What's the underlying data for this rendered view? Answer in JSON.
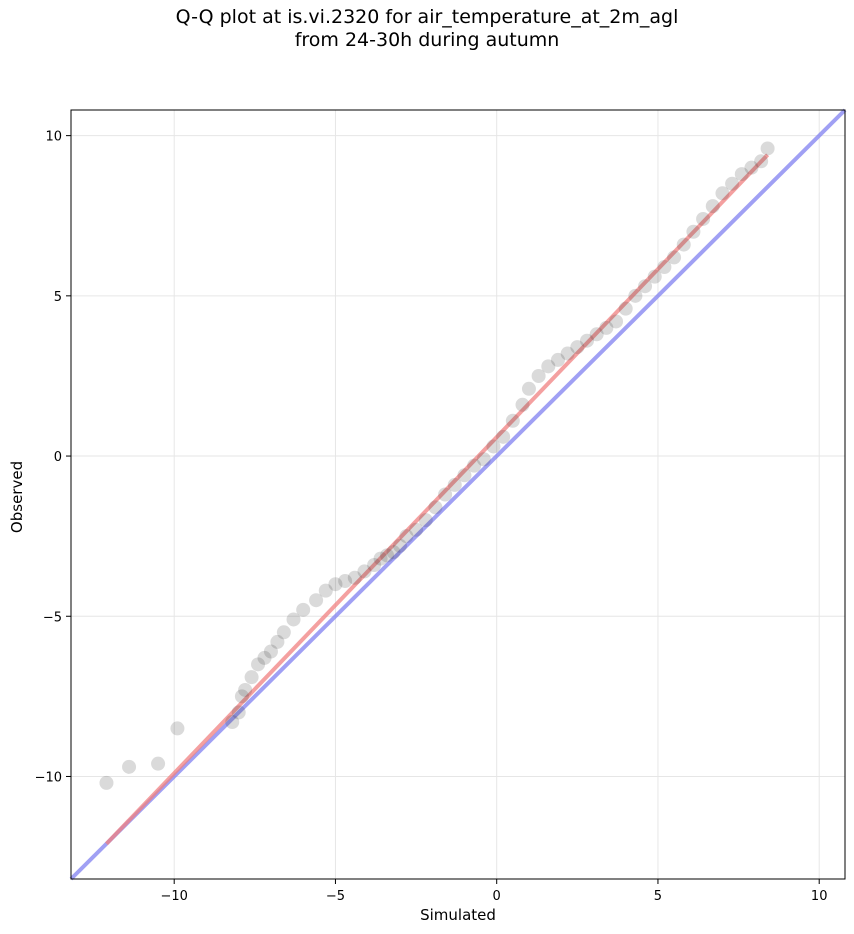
{
  "chart_data": {
    "type": "scatter",
    "title": "Q-Q plot at is.vi.2320 for air_temperature_at_2m_agl",
    "subtitle": "from 24-30h during autumn",
    "xlabel": "Simulated",
    "ylabel": "Observed",
    "xlim": [
      -13.2,
      10.8
    ],
    "ylim": [
      -13.2,
      10.8
    ],
    "xticks": [
      -10,
      -5,
      0,
      5,
      10
    ],
    "yticks": [
      -10,
      -5,
      0,
      5,
      10
    ],
    "xtick_labels": [
      "−10",
      "−5",
      "0",
      "5",
      "10"
    ],
    "ytick_labels": [
      "−10",
      "−5",
      "0",
      "5",
      "10"
    ],
    "grid": true,
    "legend": "none",
    "quantile_points": {
      "x": [
        -12.1,
        -11.4,
        -10.5,
        -9.9,
        -8.2,
        -8.0,
        -7.9,
        -7.8,
        -7.6,
        -7.4,
        -7.2,
        -7.0,
        -6.8,
        -6.6,
        -6.3,
        -6.0,
        -5.6,
        -5.3,
        -5.0,
        -4.7,
        -4.4,
        -4.1,
        -3.8,
        -3.6,
        -3.4,
        -3.2,
        -3.0,
        -2.8,
        -2.5,
        -2.2,
        -1.9,
        -1.6,
        -1.3,
        -1.0,
        -0.7,
        -0.4,
        -0.1,
        0.2,
        0.5,
        0.8,
        1.0,
        1.3,
        1.6,
        1.9,
        2.2,
        2.5,
        2.8,
        3.1,
        3.4,
        3.7,
        4.0,
        4.3,
        4.6,
        4.9,
        5.2,
        5.5,
        5.8,
        6.1,
        6.4,
        6.7,
        7.0,
        7.3,
        7.6,
        7.9,
        8.2,
        8.4
      ],
      "y": [
        -10.2,
        -9.7,
        -9.6,
        -8.5,
        -8.3,
        -8.0,
        -7.5,
        -7.3,
        -6.9,
        -6.5,
        -6.3,
        -6.1,
        -5.8,
        -5.5,
        -5.1,
        -4.8,
        -4.5,
        -4.2,
        -4.0,
        -3.9,
        -3.8,
        -3.6,
        -3.4,
        -3.2,
        -3.1,
        -3.0,
        -2.8,
        -2.5,
        -2.3,
        -2.0,
        -1.6,
        -1.2,
        -0.9,
        -0.6,
        -0.3,
        -0.1,
        0.3,
        0.6,
        1.1,
        1.6,
        2.1,
        2.5,
        2.8,
        3.0,
        3.2,
        3.4,
        3.6,
        3.8,
        4.0,
        4.2,
        4.6,
        5.0,
        5.3,
        5.6,
        5.9,
        6.2,
        6.6,
        7.0,
        7.4,
        7.8,
        8.2,
        8.5,
        8.8,
        9.0,
        9.2,
        9.6
      ]
    },
    "fit_line": {
      "color": "#f08080",
      "x": [
        -12.1,
        8.4
      ],
      "y": [
        -12.1,
        9.4
      ]
    },
    "reference_line": {
      "color": "#8080f0",
      "x": [
        -13.2,
        10.8
      ],
      "y": [
        -13.2,
        10.8
      ]
    }
  },
  "colors": {
    "points": "#333333",
    "grid": "#e6e6e6",
    "axis": "#000000"
  }
}
